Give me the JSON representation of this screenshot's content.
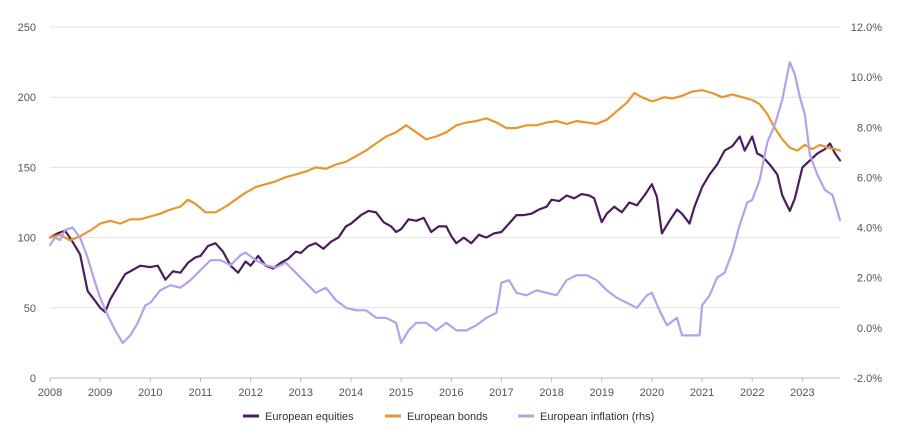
{
  "chart_data": {
    "type": "line",
    "title": "",
    "grid": "horizontal",
    "legend_position": "bottom",
    "x_axis": {
      "min": 2008,
      "max": 2023.75,
      "ticks": [
        "2008",
        "2009",
        "2010",
        "2011",
        "2012",
        "2013",
        "2014",
        "2015",
        "2016",
        "2017",
        "2018",
        "2019",
        "2020",
        "2021",
        "2022",
        "2023"
      ]
    },
    "y_left": {
      "min": 0,
      "max": 250,
      "ticks": [
        "0",
        "50",
        "100",
        "150",
        "200",
        "250"
      ]
    },
    "y_right": {
      "min": -2,
      "max": 12,
      "ticks": [
        "-2.0%",
        "0.0%",
        "2.0%",
        "4.0%",
        "6.0%",
        "8.0%",
        "10.0%",
        "12.0%"
      ]
    },
    "series": [
      {
        "name": "European equities",
        "axis": "left",
        "color": "#4b1d5c",
        "points": [
          [
            2008.0,
            100
          ],
          [
            2008.15,
            103
          ],
          [
            2008.3,
            105
          ],
          [
            2008.45,
            97
          ],
          [
            2008.6,
            88
          ],
          [
            2008.75,
            62
          ],
          [
            2008.9,
            55
          ],
          [
            2009.0,
            50
          ],
          [
            2009.1,
            47
          ],
          [
            2009.2,
            56
          ],
          [
            2009.35,
            65
          ],
          [
            2009.5,
            74
          ],
          [
            2009.65,
            77
          ],
          [
            2009.8,
            80
          ],
          [
            2010.0,
            79
          ],
          [
            2010.15,
            80
          ],
          [
            2010.3,
            70
          ],
          [
            2010.45,
            76
          ],
          [
            2010.6,
            75
          ],
          [
            2010.75,
            82
          ],
          [
            2010.9,
            86
          ],
          [
            2011.0,
            87
          ],
          [
            2011.15,
            94
          ],
          [
            2011.3,
            96
          ],
          [
            2011.45,
            90
          ],
          [
            2011.6,
            80
          ],
          [
            2011.75,
            75
          ],
          [
            2011.9,
            83
          ],
          [
            2012.0,
            80
          ],
          [
            2012.15,
            87
          ],
          [
            2012.3,
            80
          ],
          [
            2012.45,
            78
          ],
          [
            2012.6,
            82
          ],
          [
            2012.75,
            85
          ],
          [
            2012.9,
            90
          ],
          [
            2013.0,
            89
          ],
          [
            2013.15,
            94
          ],
          [
            2013.3,
            96
          ],
          [
            2013.45,
            92
          ],
          [
            2013.6,
            97
          ],
          [
            2013.75,
            100
          ],
          [
            2013.9,
            108
          ],
          [
            2014.0,
            110
          ],
          [
            2014.2,
            116
          ],
          [
            2014.35,
            119
          ],
          [
            2014.5,
            118
          ],
          [
            2014.65,
            111
          ],
          [
            2014.8,
            108
          ],
          [
            2014.9,
            104
          ],
          [
            2015.0,
            106
          ],
          [
            2015.15,
            113
          ],
          [
            2015.3,
            112
          ],
          [
            2015.45,
            114
          ],
          [
            2015.6,
            104
          ],
          [
            2015.75,
            108
          ],
          [
            2015.9,
            108
          ],
          [
            2016.0,
            101
          ],
          [
            2016.1,
            96
          ],
          [
            2016.25,
            100
          ],
          [
            2016.4,
            96
          ],
          [
            2016.55,
            102
          ],
          [
            2016.7,
            100
          ],
          [
            2016.85,
            103
          ],
          [
            2017.0,
            104
          ],
          [
            2017.15,
            110
          ],
          [
            2017.3,
            116
          ],
          [
            2017.45,
            116
          ],
          [
            2017.6,
            117
          ],
          [
            2017.75,
            120
          ],
          [
            2017.9,
            122
          ],
          [
            2018.0,
            127
          ],
          [
            2018.15,
            126
          ],
          [
            2018.3,
            130
          ],
          [
            2018.45,
            128
          ],
          [
            2018.6,
            131
          ],
          [
            2018.75,
            130
          ],
          [
            2018.85,
            128
          ],
          [
            2019.0,
            111
          ],
          [
            2019.1,
            117
          ],
          [
            2019.25,
            122
          ],
          [
            2019.4,
            118
          ],
          [
            2019.55,
            125
          ],
          [
            2019.7,
            123
          ],
          [
            2019.85,
            130
          ],
          [
            2020.0,
            138
          ],
          [
            2020.1,
            129
          ],
          [
            2020.2,
            103
          ],
          [
            2020.35,
            112
          ],
          [
            2020.5,
            120
          ],
          [
            2020.6,
            117
          ],
          [
            2020.75,
            110
          ],
          [
            2020.85,
            122
          ],
          [
            2021.0,
            136
          ],
          [
            2021.15,
            145
          ],
          [
            2021.3,
            152
          ],
          [
            2021.45,
            162
          ],
          [
            2021.6,
            165
          ],
          [
            2021.75,
            172
          ],
          [
            2021.85,
            162
          ],
          [
            2022.0,
            172
          ],
          [
            2022.1,
            160
          ],
          [
            2022.2,
            158
          ],
          [
            2022.35,
            152
          ],
          [
            2022.5,
            145
          ],
          [
            2022.6,
            130
          ],
          [
            2022.75,
            119
          ],
          [
            2022.85,
            128
          ],
          [
            2023.0,
            150
          ],
          [
            2023.15,
            155
          ],
          [
            2023.3,
            160
          ],
          [
            2023.45,
            163
          ],
          [
            2023.55,
            167
          ],
          [
            2023.65,
            160
          ],
          [
            2023.75,
            155
          ]
        ]
      },
      {
        "name": "European bonds",
        "axis": "left",
        "color": "#e8962e",
        "points": [
          [
            2008.0,
            100
          ],
          [
            2008.2,
            102
          ],
          [
            2008.4,
            98
          ],
          [
            2008.6,
            101
          ],
          [
            2008.8,
            105
          ],
          [
            2009.0,
            110
          ],
          [
            2009.2,
            112
          ],
          [
            2009.4,
            110
          ],
          [
            2009.6,
            113
          ],
          [
            2009.8,
            113
          ],
          [
            2010.0,
            115
          ],
          [
            2010.2,
            117
          ],
          [
            2010.4,
            120
          ],
          [
            2010.6,
            122
          ],
          [
            2010.75,
            127
          ],
          [
            2010.9,
            124
          ],
          [
            2011.1,
            118
          ],
          [
            2011.3,
            118
          ],
          [
            2011.5,
            122
          ],
          [
            2011.7,
            127
          ],
          [
            2011.9,
            132
          ],
          [
            2012.1,
            136
          ],
          [
            2012.3,
            138
          ],
          [
            2012.5,
            140
          ],
          [
            2012.7,
            143
          ],
          [
            2012.9,
            145
          ],
          [
            2013.1,
            147
          ],
          [
            2013.3,
            150
          ],
          [
            2013.5,
            149
          ],
          [
            2013.7,
            152
          ],
          [
            2013.9,
            154
          ],
          [
            2014.1,
            158
          ],
          [
            2014.3,
            162
          ],
          [
            2014.5,
            167
          ],
          [
            2014.7,
            172
          ],
          [
            2014.9,
            175
          ],
          [
            2015.1,
            180
          ],
          [
            2015.3,
            175
          ],
          [
            2015.5,
            170
          ],
          [
            2015.7,
            172
          ],
          [
            2015.9,
            175
          ],
          [
            2016.1,
            180
          ],
          [
            2016.3,
            182
          ],
          [
            2016.5,
            183
          ],
          [
            2016.7,
            185
          ],
          [
            2016.9,
            182
          ],
          [
            2017.1,
            178
          ],
          [
            2017.3,
            178
          ],
          [
            2017.5,
            180
          ],
          [
            2017.7,
            180
          ],
          [
            2017.9,
            182
          ],
          [
            2018.1,
            183
          ],
          [
            2018.3,
            181
          ],
          [
            2018.5,
            183
          ],
          [
            2018.7,
            182
          ],
          [
            2018.9,
            181
          ],
          [
            2019.1,
            184
          ],
          [
            2019.3,
            190
          ],
          [
            2019.5,
            196
          ],
          [
            2019.65,
            203
          ],
          [
            2019.8,
            200
          ],
          [
            2020.0,
            197
          ],
          [
            2020.1,
            198
          ],
          [
            2020.25,
            200
          ],
          [
            2020.4,
            199
          ],
          [
            2020.6,
            201
          ],
          [
            2020.8,
            204
          ],
          [
            2021.0,
            205
          ],
          [
            2021.2,
            203
          ],
          [
            2021.4,
            200
          ],
          [
            2021.6,
            202
          ],
          [
            2021.8,
            200
          ],
          [
            2022.0,
            198
          ],
          [
            2022.15,
            195
          ],
          [
            2022.3,
            188
          ],
          [
            2022.45,
            178
          ],
          [
            2022.6,
            170
          ],
          [
            2022.75,
            164
          ],
          [
            2022.9,
            162
          ],
          [
            2023.05,
            166
          ],
          [
            2023.2,
            163
          ],
          [
            2023.35,
            166
          ],
          [
            2023.5,
            164
          ],
          [
            2023.65,
            163
          ],
          [
            2023.75,
            162
          ]
        ]
      },
      {
        "name": "European inflation (rhs)",
        "axis": "right",
        "color": "#b0a3ec",
        "points": [
          [
            2008.0,
            3.3
          ],
          [
            2008.1,
            3.6
          ],
          [
            2008.2,
            3.5
          ],
          [
            2008.3,
            3.9
          ],
          [
            2008.45,
            4.0
          ],
          [
            2008.6,
            3.6
          ],
          [
            2008.75,
            2.8
          ],
          [
            2008.9,
            1.8
          ],
          [
            2009.0,
            1.2
          ],
          [
            2009.15,
            0.5
          ],
          [
            2009.3,
            -0.1
          ],
          [
            2009.45,
            -0.6
          ],
          [
            2009.6,
            -0.3
          ],
          [
            2009.75,
            0.2
          ],
          [
            2009.9,
            0.9
          ],
          [
            2010.0,
            1.0
          ],
          [
            2010.2,
            1.5
          ],
          [
            2010.4,
            1.7
          ],
          [
            2010.6,
            1.6
          ],
          [
            2010.8,
            1.9
          ],
          [
            2011.0,
            2.3
          ],
          [
            2011.2,
            2.7
          ],
          [
            2011.4,
            2.7
          ],
          [
            2011.6,
            2.5
          ],
          [
            2011.8,
            2.9
          ],
          [
            2011.9,
            3.0
          ],
          [
            2012.1,
            2.7
          ],
          [
            2012.3,
            2.5
          ],
          [
            2012.5,
            2.4
          ],
          [
            2012.7,
            2.6
          ],
          [
            2012.9,
            2.2
          ],
          [
            2013.1,
            1.8
          ],
          [
            2013.3,
            1.4
          ],
          [
            2013.5,
            1.6
          ],
          [
            2013.7,
            1.1
          ],
          [
            2013.9,
            0.8
          ],
          [
            2014.1,
            0.7
          ],
          [
            2014.3,
            0.7
          ],
          [
            2014.5,
            0.4
          ],
          [
            2014.7,
            0.4
          ],
          [
            2014.9,
            0.2
          ],
          [
            2015.0,
            -0.6
          ],
          [
            2015.15,
            -0.1
          ],
          [
            2015.3,
            0.2
          ],
          [
            2015.5,
            0.2
          ],
          [
            2015.7,
            -0.1
          ],
          [
            2015.9,
            0.2
          ],
          [
            2016.1,
            -0.1
          ],
          [
            2016.3,
            -0.1
          ],
          [
            2016.5,
            0.1
          ],
          [
            2016.7,
            0.4
          ],
          [
            2016.9,
            0.6
          ],
          [
            2017.0,
            1.8
          ],
          [
            2017.15,
            1.9
          ],
          [
            2017.3,
            1.4
          ],
          [
            2017.5,
            1.3
          ],
          [
            2017.7,
            1.5
          ],
          [
            2017.9,
            1.4
          ],
          [
            2018.1,
            1.3
          ],
          [
            2018.3,
            1.9
          ],
          [
            2018.5,
            2.1
          ],
          [
            2018.7,
            2.1
          ],
          [
            2018.9,
            1.9
          ],
          [
            2019.1,
            1.5
          ],
          [
            2019.3,
            1.2
          ],
          [
            2019.5,
            1.0
          ],
          [
            2019.7,
            0.8
          ],
          [
            2019.9,
            1.3
          ],
          [
            2020.0,
            1.4
          ],
          [
            2020.15,
            0.7
          ],
          [
            2020.3,
            0.1
          ],
          [
            2020.5,
            0.4
          ],
          [
            2020.6,
            -0.3
          ],
          [
            2020.8,
            -0.3
          ],
          [
            2020.95,
            -0.3
          ],
          [
            2021.0,
            0.9
          ],
          [
            2021.15,
            1.3
          ],
          [
            2021.3,
            2.0
          ],
          [
            2021.45,
            2.2
          ],
          [
            2021.6,
            3.0
          ],
          [
            2021.75,
            4.1
          ],
          [
            2021.9,
            5.0
          ],
          [
            2022.0,
            5.1
          ],
          [
            2022.15,
            5.9
          ],
          [
            2022.3,
            7.4
          ],
          [
            2022.45,
            8.1
          ],
          [
            2022.6,
            9.1
          ],
          [
            2022.75,
            10.6
          ],
          [
            2022.85,
            10.1
          ],
          [
            2022.95,
            9.2
          ],
          [
            2023.05,
            8.5
          ],
          [
            2023.15,
            6.9
          ],
          [
            2023.3,
            6.1
          ],
          [
            2023.45,
            5.5
          ],
          [
            2023.6,
            5.3
          ],
          [
            2023.75,
            4.3
          ]
        ]
      }
    ]
  }
}
